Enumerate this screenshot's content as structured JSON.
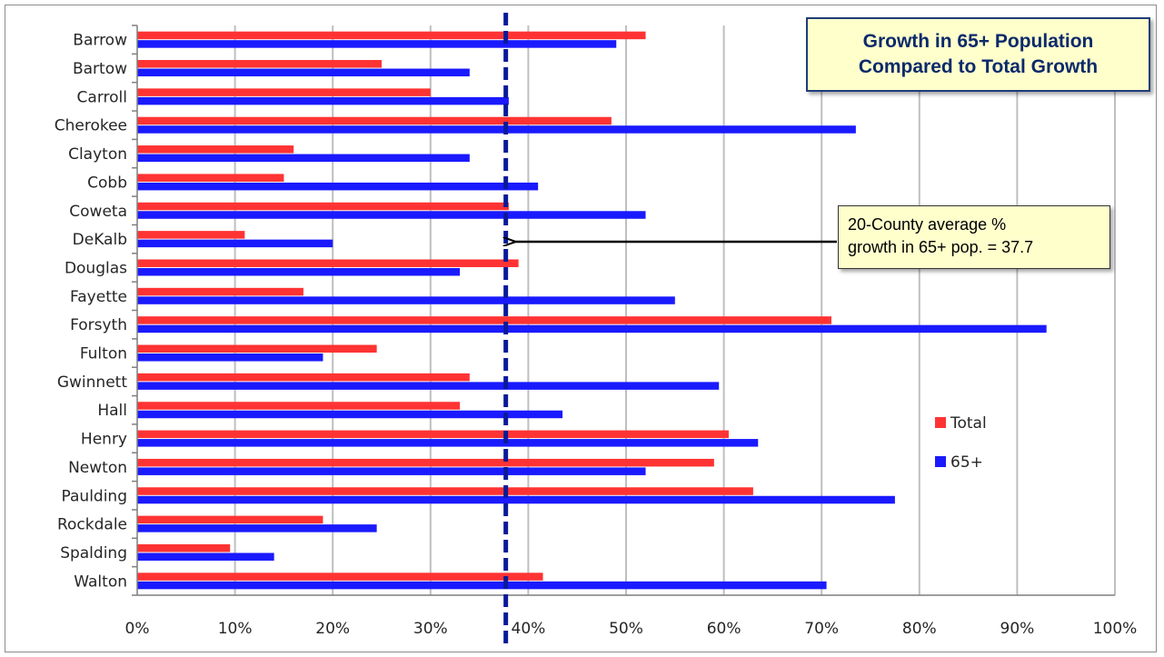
{
  "chart_data": {
    "type": "bar",
    "orientation": "horizontal",
    "title": "Growth in 65+ Population Compared to Total Growth",
    "title_lines": [
      "Growth in 65+ Population",
      "Compared to Total Growth"
    ],
    "categories": [
      "Barrow",
      "Bartow",
      "Carroll",
      "Cherokee",
      "Clayton",
      "Cobb",
      "Coweta",
      "DeKalb",
      "Douglas",
      "Fayette",
      "Forsyth",
      "Fulton",
      "Gwinnett",
      "Hall",
      "Henry",
      "Newton",
      "Paulding",
      "Rockdale",
      "Spalding",
      "Walton"
    ],
    "series": [
      {
        "name": "Total",
        "color": "#ff3333",
        "values": [
          52,
          25,
          30,
          48.5,
          16,
          15,
          38,
          11,
          39,
          17,
          71,
          24.5,
          34,
          33,
          60.5,
          59,
          63,
          19,
          9.5,
          41.5
        ]
      },
      {
        "name": "65+",
        "color": "#1a1aff",
        "values": [
          49,
          34,
          38,
          73.5,
          34,
          41,
          52,
          20,
          33,
          55,
          93,
          19,
          59.5,
          43.5,
          63.5,
          52,
          77.5,
          24.5,
          14,
          70.5
        ]
      }
    ],
    "xlim": [
      0,
      100
    ],
    "x_ticks": [
      "0%",
      "10%",
      "20%",
      "30%",
      "40%",
      "50%",
      "60%",
      "70%",
      "80%",
      "90%",
      "100%"
    ],
    "grid": true,
    "legend_position": "right",
    "reference_line": {
      "value": 37.7,
      "style": "dashed",
      "color": "#0a1a99"
    },
    "annotation_lines": [
      "20-County average %",
      "growth in 65+ pop. = 37.7"
    ]
  }
}
